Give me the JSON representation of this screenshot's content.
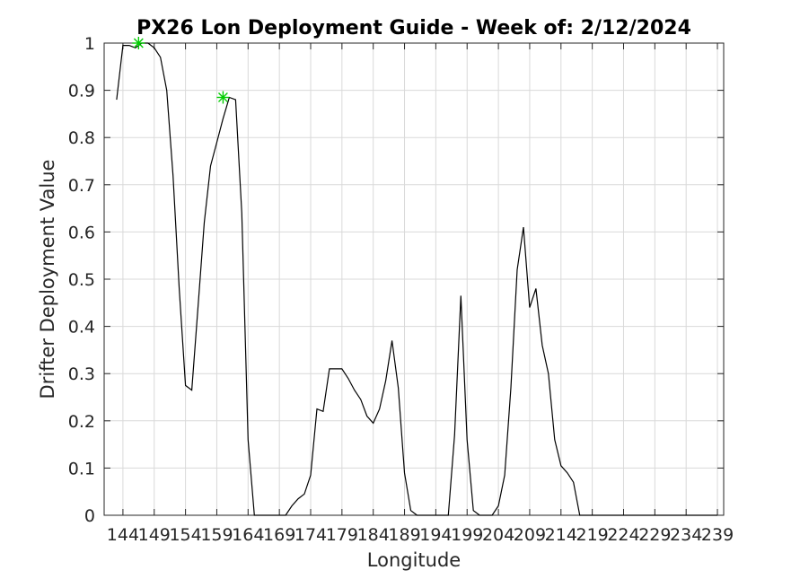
{
  "chart_data": {
    "type": "line",
    "title": "PX26 Lon Deployment Guide - Week of: 2/12/2024",
    "xlabel": "Longitude",
    "ylabel": "Drifter Deployment Value",
    "xlim": [
      141,
      240
    ],
    "ylim": [
      0,
      1
    ],
    "xticks": [
      144,
      149,
      154,
      159,
      164,
      169,
      174,
      179,
      184,
      189,
      194,
      199,
      204,
      209,
      214,
      219,
      224,
      229,
      234,
      239
    ],
    "yticks": [
      0,
      0.1,
      0.2,
      0.3,
      0.4,
      0.5,
      0.6,
      0.7,
      0.8,
      0.9,
      1
    ],
    "ytick_labels": [
      "0",
      "0.1",
      "0.2",
      "0.3",
      "0.4",
      "0.5",
      "0.6",
      "0.7",
      "0.8",
      "0.9",
      "1"
    ],
    "grid": true,
    "line_color": "#000000",
    "marker_color": "#00cc00",
    "series": [
      {
        "x": [
          143,
          144,
          145,
          146,
          147,
          148,
          149,
          150,
          151,
          152,
          153,
          154,
          155,
          156,
          157,
          158,
          159,
          160,
          161,
          162,
          163,
          164,
          165,
          166,
          167,
          168,
          169,
          170,
          171,
          172,
          173,
          174,
          175,
          176,
          177,
          178,
          179,
          180,
          181,
          182,
          183,
          184,
          185,
          186,
          187,
          188,
          189,
          190,
          191,
          192,
          193,
          194,
          195,
          196,
          197,
          198,
          199,
          200,
          201,
          202,
          203,
          204,
          205,
          206,
          207,
          208,
          209,
          210,
          211,
          212,
          213,
          214,
          215,
          216,
          217,
          218,
          219,
          220,
          221,
          222,
          223,
          224,
          225,
          226,
          227,
          228,
          229,
          230,
          231,
          232,
          233,
          234,
          235,
          236,
          237,
          238,
          239
        ],
        "values": [
          0.88,
          0.995,
          0.995,
          0.99,
          1.0,
          1.0,
          0.99,
          0.97,
          0.9,
          0.72,
          0.48,
          0.275,
          0.265,
          0.44,
          0.62,
          0.74,
          0.79,
          0.84,
          0.885,
          0.88,
          0.64,
          0.16,
          0,
          0,
          0,
          0,
          0,
          0,
          0.02,
          0.035,
          0.045,
          0.085,
          0.225,
          0.22,
          0.31,
          0.31,
          0.31,
          0.29,
          0.265,
          0.245,
          0.21,
          0.195,
          0.225,
          0.285,
          0.37,
          0.27,
          0.09,
          0.01,
          0,
          0,
          0,
          0,
          0,
          0,
          0.17,
          0.465,
          0.16,
          0.01,
          0,
          0,
          0,
          0.02,
          0.085,
          0.27,
          0.52,
          0.61,
          0.44,
          0.48,
          0.36,
          0.3,
          0.16,
          0.105,
          0.09,
          0.07,
          0,
          0,
          0,
          0,
          0,
          0,
          0,
          0,
          0,
          0,
          0,
          0,
          0,
          0,
          0,
          0,
          0,
          0,
          0,
          0,
          0,
          0,
          0
        ]
      }
    ],
    "markers": [
      {
        "x": 146.5,
        "y": 1.0
      },
      {
        "x": 160,
        "y": 0.885
      }
    ]
  }
}
